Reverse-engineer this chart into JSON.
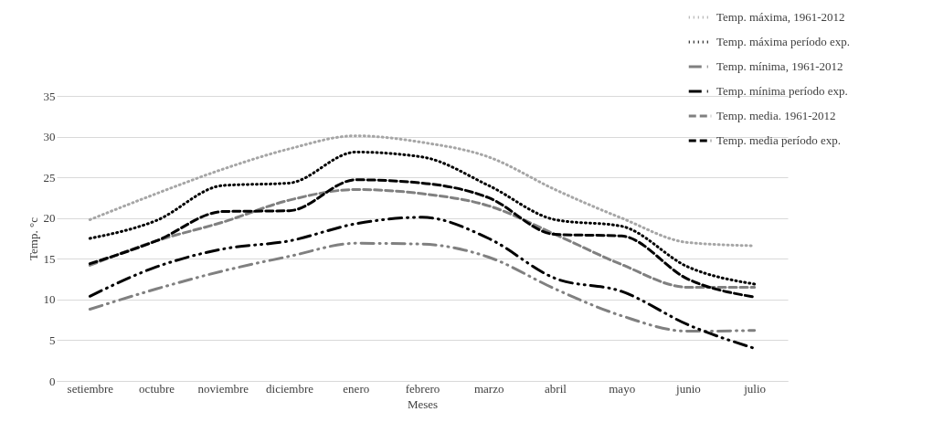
{
  "chart_data": {
    "type": "line",
    "xlabel": "Meses",
    "ylabel": "Temp. °c",
    "categories": [
      "setiembre",
      "octubre",
      "noviembre",
      "diciembre",
      "enero",
      "febrero",
      "marzo",
      "abril",
      "mayo",
      "junio",
      "julio"
    ],
    "ylim": [
      0,
      35
    ],
    "yticks": [
      0,
      5,
      10,
      15,
      20,
      25,
      30,
      35
    ],
    "grid": "y",
    "legend": "top right",
    "marker": "none",
    "series": [
      {
        "name": "Temp. máxima, 1961-2012",
        "color": "#a6a6a6",
        "line_style": "dotted",
        "values": [
          19.8,
          23,
          26,
          28.5,
          30.1,
          29.3,
          27.5,
          23.5,
          20,
          17,
          16.6
        ]
      },
      {
        "name": "Temp. máxima período exp.",
        "color": "#000000",
        "line_style": "dotted",
        "values": [
          17.5,
          19.7,
          24,
          24.3,
          28.1,
          27.5,
          24,
          19.8,
          19,
          14,
          11.9
        ]
      },
      {
        "name": "Temp. mínima, 1961-2012",
        "color": "#808080",
        "line_style": "dashdot",
        "values": [
          8.8,
          11.3,
          13.5,
          15.3,
          16.9,
          16.8,
          15.2,
          11.3,
          8,
          6.1,
          6.2
        ]
      },
      {
        "name": "Temp. mínima período exp.",
        "color": "#000000",
        "line_style": "dashdot",
        "values": [
          10.4,
          14,
          16.2,
          17.2,
          19.3,
          20.1,
          17.5,
          12.6,
          11,
          6.9,
          4
        ]
      },
      {
        "name": "Temp. media. 1961-2012",
        "color": "#808080",
        "line_style": "dashed",
        "values": [
          14.2,
          17.2,
          19.5,
          22.2,
          23.5,
          23,
          21.5,
          18,
          14.3,
          11.5,
          11.5
        ]
      },
      {
        "name": "Temp. media período exp.",
        "color": "#000000",
        "line_style": "dashed",
        "values": [
          14.4,
          17.2,
          20.8,
          20.9,
          24.7,
          24.3,
          22.5,
          18,
          17.8,
          12.5,
          10.3
        ]
      }
    ]
  }
}
